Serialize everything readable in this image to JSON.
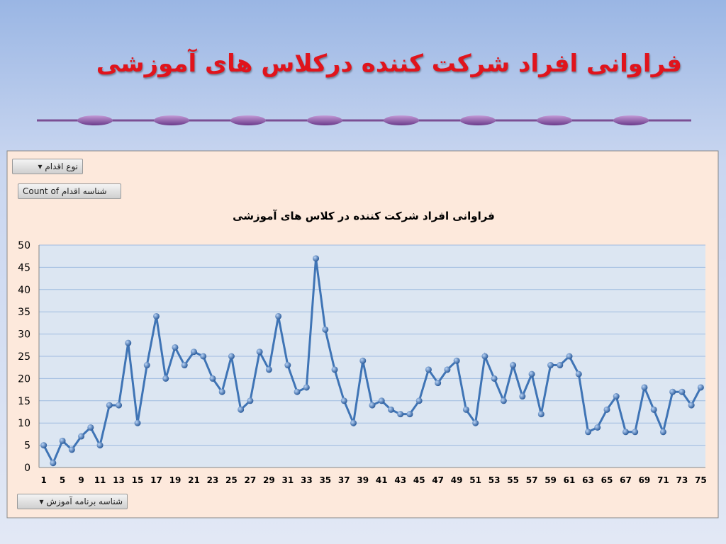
{
  "slide_title": "فراوانی افراد شرکت کننده درکلاس های آموزشی",
  "filter_button": "نوع اقدام",
  "data_button": "Count of شناسه اقدام",
  "axis_button": "شناسه برنامه آموزش",
  "chart_data": {
    "type": "line",
    "title": "فراوانی افراد شرکت کننده در کلاس های آموزشی",
    "categories": [
      "1",
      null,
      "5",
      null,
      "9",
      null,
      "11",
      null,
      "13",
      null,
      "15",
      null,
      "17",
      null,
      "19",
      null,
      "21",
      null,
      "23",
      null,
      "25",
      null,
      "27",
      null,
      "29",
      null,
      "31",
      null,
      "33",
      null,
      "35",
      null,
      "37",
      null,
      "39",
      null,
      "41",
      null,
      "43",
      null,
      "45",
      null,
      "47",
      null,
      "49",
      null,
      "51",
      null,
      "53",
      null,
      "55",
      null,
      "57",
      null,
      "59",
      null,
      "61",
      null,
      "63",
      null,
      "65",
      null,
      "67",
      null,
      "69",
      null,
      "71",
      null,
      "73",
      null,
      "75"
    ],
    "values": [
      5,
      1,
      6,
      4,
      7,
      9,
      5,
      14,
      14,
      28,
      10,
      23,
      34,
      20,
      27,
      23,
      26,
      25,
      20,
      17,
      25,
      13,
      15,
      26,
      22,
      34,
      23,
      17,
      18,
      47,
      31,
      22,
      15,
      10,
      24,
      14,
      15,
      13,
      12,
      12,
      15,
      22,
      19,
      22,
      24,
      13,
      10,
      25,
      20,
      15,
      23,
      16,
      21,
      12,
      23,
      23,
      25,
      21,
      8,
      9,
      13,
      16,
      8,
      8,
      18,
      13,
      8,
      17,
      17,
      14,
      18
    ],
    "color": "#3f74b5",
    "ylim": [
      0,
      50
    ],
    "yticks": [
      0,
      5,
      10,
      15,
      20,
      25,
      30,
      35,
      40,
      45,
      50
    ],
    "grid": true
  }
}
